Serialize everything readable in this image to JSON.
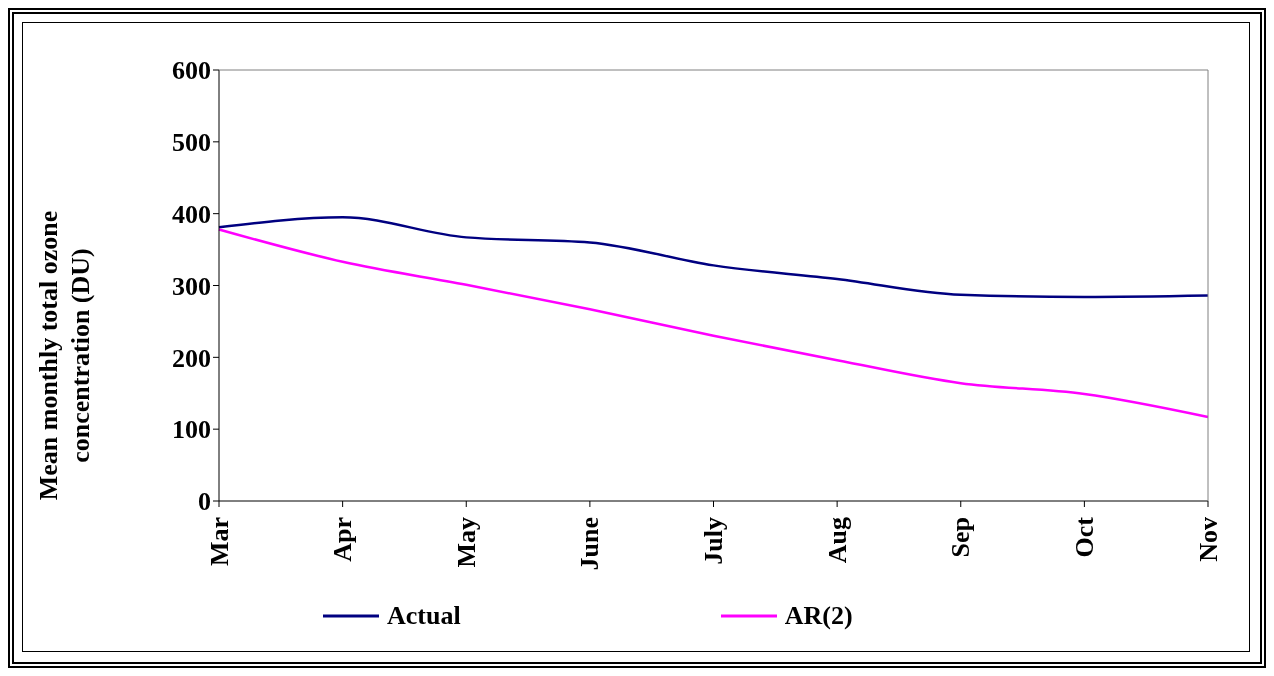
{
  "chart_data": {
    "type": "line",
    "ylabel": "Mean monthly total ozone concentration (DU)",
    "categories": [
      "Mar",
      "Apr",
      "May",
      "June",
      "July",
      "Aug",
      "Sep",
      "Oct",
      "Nov"
    ],
    "series": [
      {
        "name": "Actual",
        "color": "#000080",
        "values": [
          381,
          395,
          367,
          360,
          328,
          309,
          287,
          284,
          286
        ]
      },
      {
        "name": "AR(2)",
        "color": "#ff00ff",
        "values": [
          378,
          333,
          301,
          267,
          230,
          196,
          164,
          149,
          117
        ]
      }
    ],
    "ylim": [
      0,
      600
    ],
    "yticks": [
      0,
      100,
      200,
      300,
      400,
      500,
      600
    ],
    "grid": false,
    "legend": "bottom",
    "marker": "none",
    "line_style": "solid"
  }
}
